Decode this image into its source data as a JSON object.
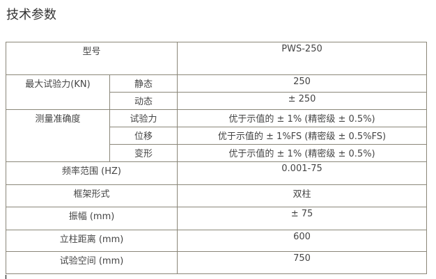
{
  "title": "技术参数",
  "table": {
    "model": {
      "label": "型号",
      "value": "PWS-250"
    },
    "max_force": {
      "label": "最大试验力(KN)",
      "rows": [
        {
          "sub": "静态",
          "value": "250"
        },
        {
          "sub": "动态",
          "value": "± 250"
        }
      ]
    },
    "accuracy": {
      "label": "测量准确度",
      "rows": [
        {
          "sub": "试验力",
          "value": "优于示值的 ± 1% (精密级 ± 0.5%)"
        },
        {
          "sub": "位移",
          "value": "优于示值的 ± 1%FS (精密级 ± 0.5%FS)"
        },
        {
          "sub": "变形",
          "value": "优于示值的 ± 1% (精密级 ± 0.5%)"
        }
      ]
    },
    "rows": [
      {
        "label": "频率范围 (HZ)",
        "value": "0.001-75"
      },
      {
        "label": "框架形式",
        "value": "双柱"
      },
      {
        "label": "振幅 (mm)",
        "value": "± 75"
      },
      {
        "label": "立柱距离 (mm)",
        "value": "600"
      },
      {
        "label": "试验空间 (mm)",
        "value": "750"
      }
    ]
  }
}
